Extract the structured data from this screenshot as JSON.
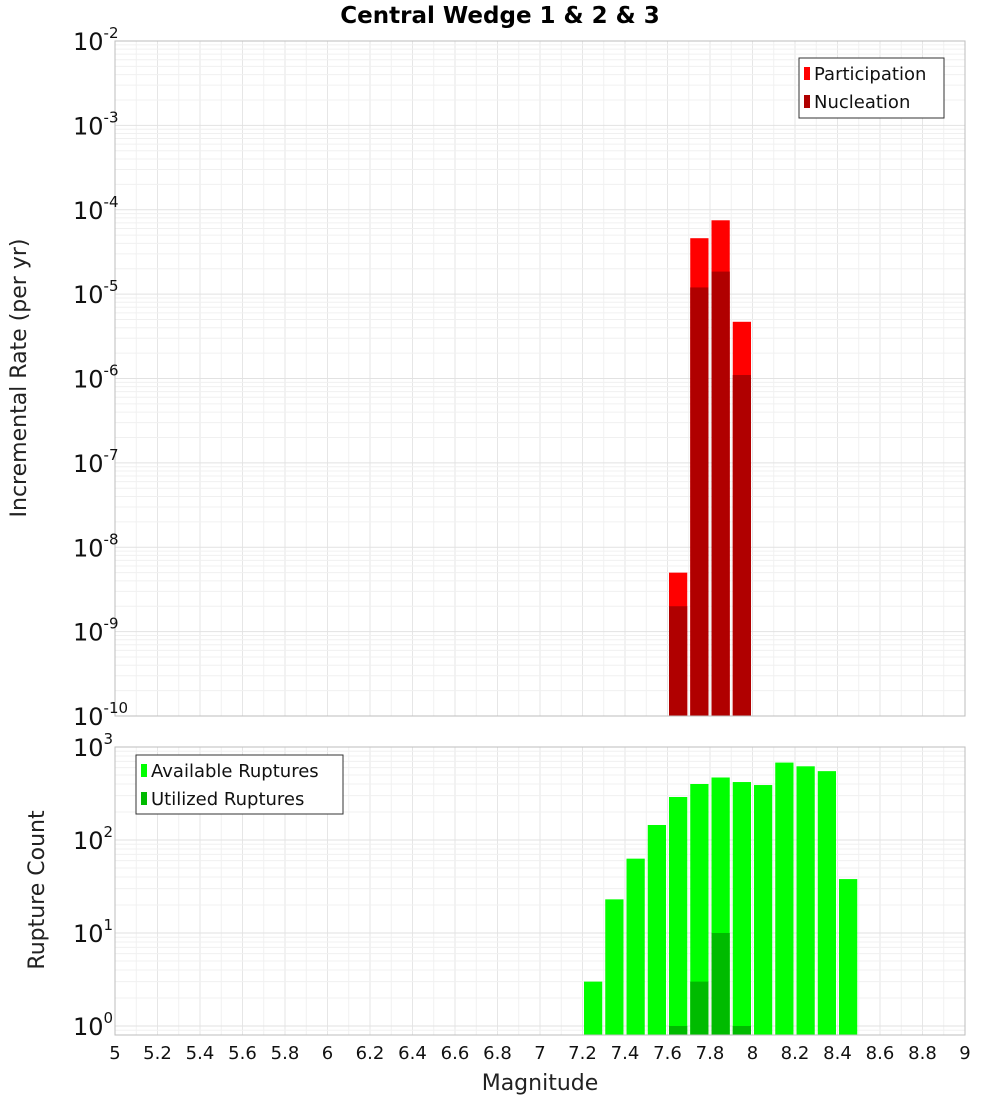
{
  "chart_data": [
    {
      "type": "bar",
      "title": "Central Wedge 1 & 2 & 3",
      "xlabel": "",
      "ylabel": "Incremental Rate (per yr)",
      "yscale": "log",
      "ylim": [
        1e-10,
        0.01
      ],
      "y_ticks": [
        {
          "base": "10",
          "exp": "-2"
        },
        {
          "base": "10",
          "exp": "-3"
        },
        {
          "base": "10",
          "exp": "-4"
        },
        {
          "base": "10",
          "exp": "-5"
        },
        {
          "base": "10",
          "exp": "-6"
        },
        {
          "base": "10",
          "exp": "-7"
        },
        {
          "base": "10",
          "exp": "-8"
        },
        {
          "base": "10",
          "exp": "-9"
        },
        {
          "base": "10",
          "exp": "-10"
        }
      ],
      "x": [
        7.65,
        7.75,
        7.85,
        7.95
      ],
      "bar_width": 0.1,
      "series": [
        {
          "name": "Participation",
          "color": "#ff0000",
          "values": [
            5e-09,
            4.6e-05,
            7.5e-05,
            4.7e-06
          ]
        },
        {
          "name": "Nucleation",
          "color": "#b00000",
          "values": [
            2e-09,
            1.2e-05,
            1.85e-05,
            1.1e-06
          ]
        }
      ],
      "legend": "top-right"
    },
    {
      "type": "bar",
      "title": "",
      "xlabel": "Magnitude",
      "ylabel": "Rupture Count",
      "yscale": "log",
      "ylim": [
        0.8,
        1000
      ],
      "y_ticks": [
        {
          "base": "10",
          "exp": "3"
        },
        {
          "base": "10",
          "exp": "2"
        },
        {
          "base": "10",
          "exp": "1"
        },
        {
          "base": "10",
          "exp": "0"
        }
      ],
      "x": [
        7.25,
        7.35,
        7.45,
        7.55,
        7.65,
        7.75,
        7.85,
        7.95,
        8.05,
        8.15,
        8.25,
        8.35,
        8.45
      ],
      "bar_width": 0.1,
      "series": [
        {
          "name": "Available Ruptures",
          "color": "#00ff00",
          "values": [
            3,
            23,
            63,
            145,
            290,
            400,
            470,
            420,
            390,
            680,
            620,
            550,
            38
          ]
        },
        {
          "name": "Utilized Ruptures",
          "color": "#00bb00",
          "values": [
            null,
            null,
            null,
            null,
            1,
            3,
            10,
            1,
            null,
            null,
            null,
            null,
            null
          ]
        }
      ],
      "legend": "top-left"
    }
  ],
  "x_axis": {
    "xlim": [
      5,
      9
    ],
    "tick_labels": [
      "5",
      "5.2",
      "5.4",
      "5.6",
      "5.8",
      "6",
      "6.2",
      "6.4",
      "6.6",
      "6.8",
      "7",
      "7.2",
      "7.4",
      "7.6",
      "7.8",
      "8",
      "8.2",
      "8.4",
      "8.6",
      "8.8",
      "9"
    ]
  }
}
